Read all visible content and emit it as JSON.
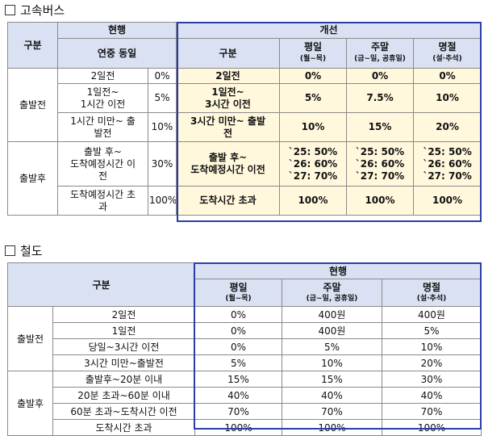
{
  "bus": {
    "title": "고속버스",
    "current_label": "현행",
    "improved_label": "개선",
    "category_label": "구분",
    "same_year_label": "연중 동일",
    "improved_category_label": "구분",
    "cols": [
      {
        "name": "평일",
        "sub": "(월~목)"
      },
      {
        "name": "주말",
        "sub": "(금~일, 공휴일)"
      },
      {
        "name": "명절",
        "sub": "(설·추석)"
      }
    ],
    "groups": [
      {
        "label": "출발전"
      },
      {
        "label": "출발후"
      }
    ],
    "rows": [
      {
        "cur_label": "2일전",
        "cur_rate": "0%",
        "new_label": "2일전",
        "v": [
          "0%",
          "0%",
          "0%"
        ]
      },
      {
        "cur_label": "1일전~\n1시간 이전",
        "cur_rate": "5%",
        "new_label": "1일전~\n3시간 이전",
        "v": [
          "5%",
          "7.5%",
          "10%"
        ]
      },
      {
        "cur_label": "1시간 미만~ 출\n발전",
        "cur_rate": "10%",
        "new_label": "3시간 미만~ 출발\n전",
        "v": [
          "10%",
          "15%",
          "20%"
        ]
      },
      {
        "cur_label": "출발 후~\n도착예정시간 이\n전",
        "cur_rate": "30%",
        "new_label": "출발 후~\n도착예정시간 이전",
        "v": [
          "`25: 50%\n`26: 60%\n`27: 70%",
          "`25: 50%\n`26: 60%\n`27: 70%",
          "`25: 50%\n`26: 60%\n`27: 70%"
        ]
      },
      {
        "cur_label": "도착예정시간 초\n과",
        "cur_rate": "100%",
        "new_label": "도착시간 초과",
        "v": [
          "100%",
          "100%",
          "100%"
        ]
      }
    ]
  },
  "rail": {
    "title": "철도",
    "current_label": "현행",
    "category_label": "구분",
    "cols": [
      {
        "name": "평일",
        "sub": "(월~목)"
      },
      {
        "name": "주말",
        "sub": "(금~일, 공휴일)"
      },
      {
        "name": "명절",
        "sub": "(설·추석)"
      }
    ],
    "groups": [
      {
        "label": "출발전"
      },
      {
        "label": "출발후"
      }
    ],
    "rows": [
      {
        "label": "2일전",
        "v": [
          "0%",
          "400원",
          "400원"
        ]
      },
      {
        "label": "1일전",
        "v": [
          "0%",
          "400원",
          "5%"
        ]
      },
      {
        "label": "당일~3시간 이전",
        "v": [
          "0%",
          "5%",
          "10%"
        ]
      },
      {
        "label": "3시간 미만~출발전",
        "v": [
          "5%",
          "10%",
          "20%"
        ]
      },
      {
        "label": "출발후~20분 이내",
        "v": [
          "15%",
          "15%",
          "30%"
        ]
      },
      {
        "label": "20분 초과~60분 이내",
        "v": [
          "40%",
          "40%",
          "40%"
        ]
      },
      {
        "label": "60분 초과~도착시간 이전",
        "v": [
          "70%",
          "70%",
          "70%"
        ]
      },
      {
        "label": "도착시간 초과",
        "v": [
          "100%",
          "100%",
          "100%"
        ]
      }
    ]
  }
}
